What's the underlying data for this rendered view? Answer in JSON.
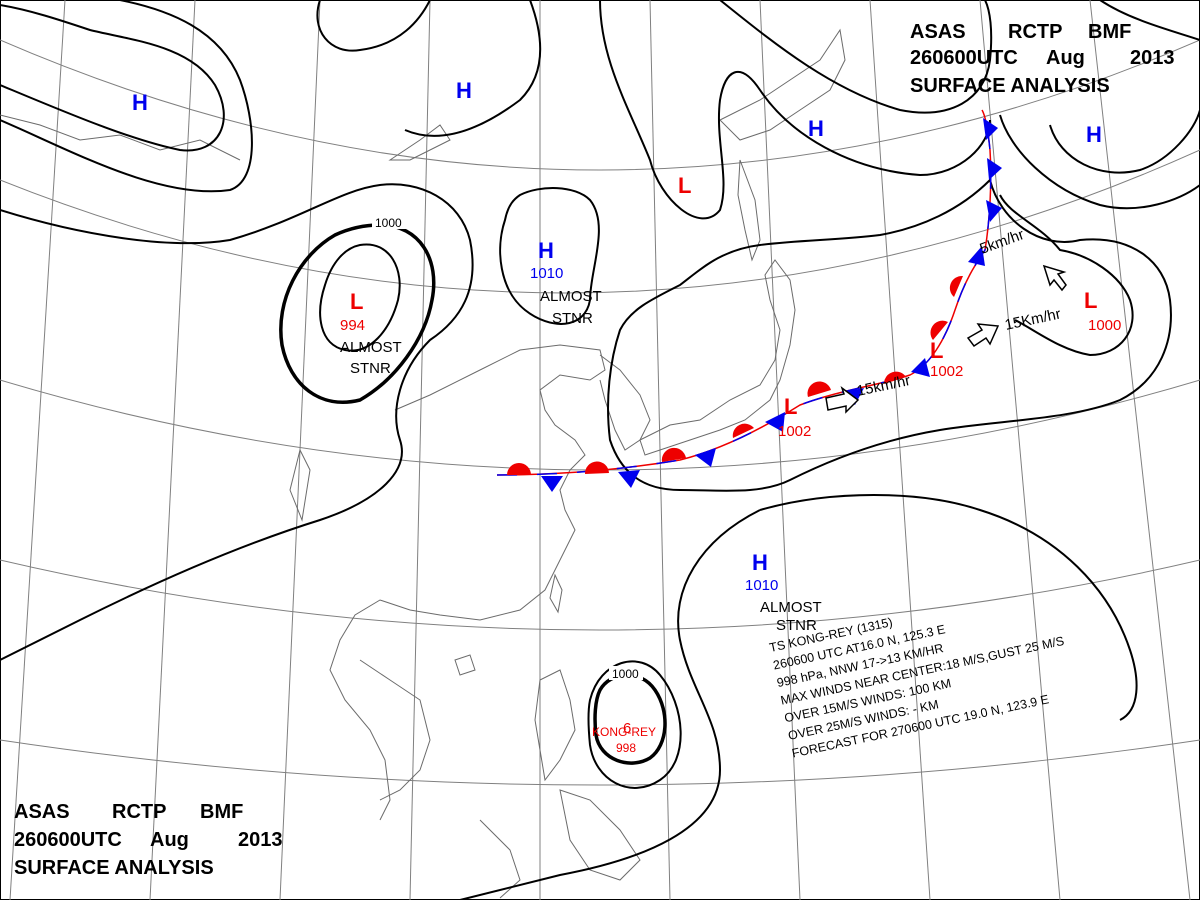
{
  "header_top": {
    "line1": [
      "ASAS",
      "RCTP",
      "BMF"
    ],
    "line2": [
      "260600UTC",
      "Aug",
      "2013"
    ],
    "line3": "SURFACE  ANALYSIS"
  },
  "header_bottom": {
    "line1": [
      "ASAS",
      "RCTP",
      "BMF"
    ],
    "line2": [
      "260600UTC",
      "Aug",
      "2013"
    ],
    "line3": "SURFACE  ANALYSIS"
  },
  "systems": {
    "high_nw": "H",
    "high_n": "H",
    "high_mongolia": "H",
    "high_mongolia_pressure": "1010",
    "high_mongolia_note_1": "ALMOST",
    "high_mongolia_note_2": "STNR",
    "high_okhotsk": "H",
    "high_ne": "H",
    "low_siberia": "L",
    "low_west": "L",
    "low_west_pressure": "994",
    "low_west_note_1": "ALMOST",
    "low_west_note_2": "STNR",
    "low_japan_sea": "L",
    "low_japan_sea_pressure": "1002",
    "low_east": "L",
    "low_east_pressure": "1002",
    "low_far_east": "L",
    "low_far_east_pressure": "1000",
    "high_pacific": "H",
    "high_pacific_pressure": "1010",
    "high_pacific_note_1": "ALMOST",
    "high_pacific_note_2": "STNR",
    "typhoon_name": "KONG-REY",
    "typhoon_pressure": "998",
    "typhoon_symbol": "6"
  },
  "isobar_labels": {
    "west_low_1000": "1000",
    "typhoon_1000": "1000"
  },
  "motion_labels": {
    "low_east_speed": "15km/hr",
    "low_far_east_speed": "15Km/hr",
    "low_north_speed": "5km/hr"
  },
  "typhoon_info": {
    "line1": "TS  KONG-REY  (1315)",
    "line2": "260600  UTC   AT16.0 N, 125.3 E",
    "line3": "998 hPa, NNW  17->13 KM/HR",
    "line4": "MAX WINDS NEAR CENTER:18 M/S,GUST 25 M/S",
    "line5": "OVER 15M/S WINDS: 100 KM",
    "line6": "OVER 25M/S WINDS: - KM",
    "line7": "FORECAST FOR 270600 UTC 19.0 N, 123.9 E"
  },
  "colors": {
    "high": "#0000ee",
    "low": "#ee0000",
    "warm_front": "#ee0000",
    "cold_front": "#0000ee",
    "isobar": "#000000",
    "coastline": "#6b6b6b",
    "graticule": "#808080"
  }
}
